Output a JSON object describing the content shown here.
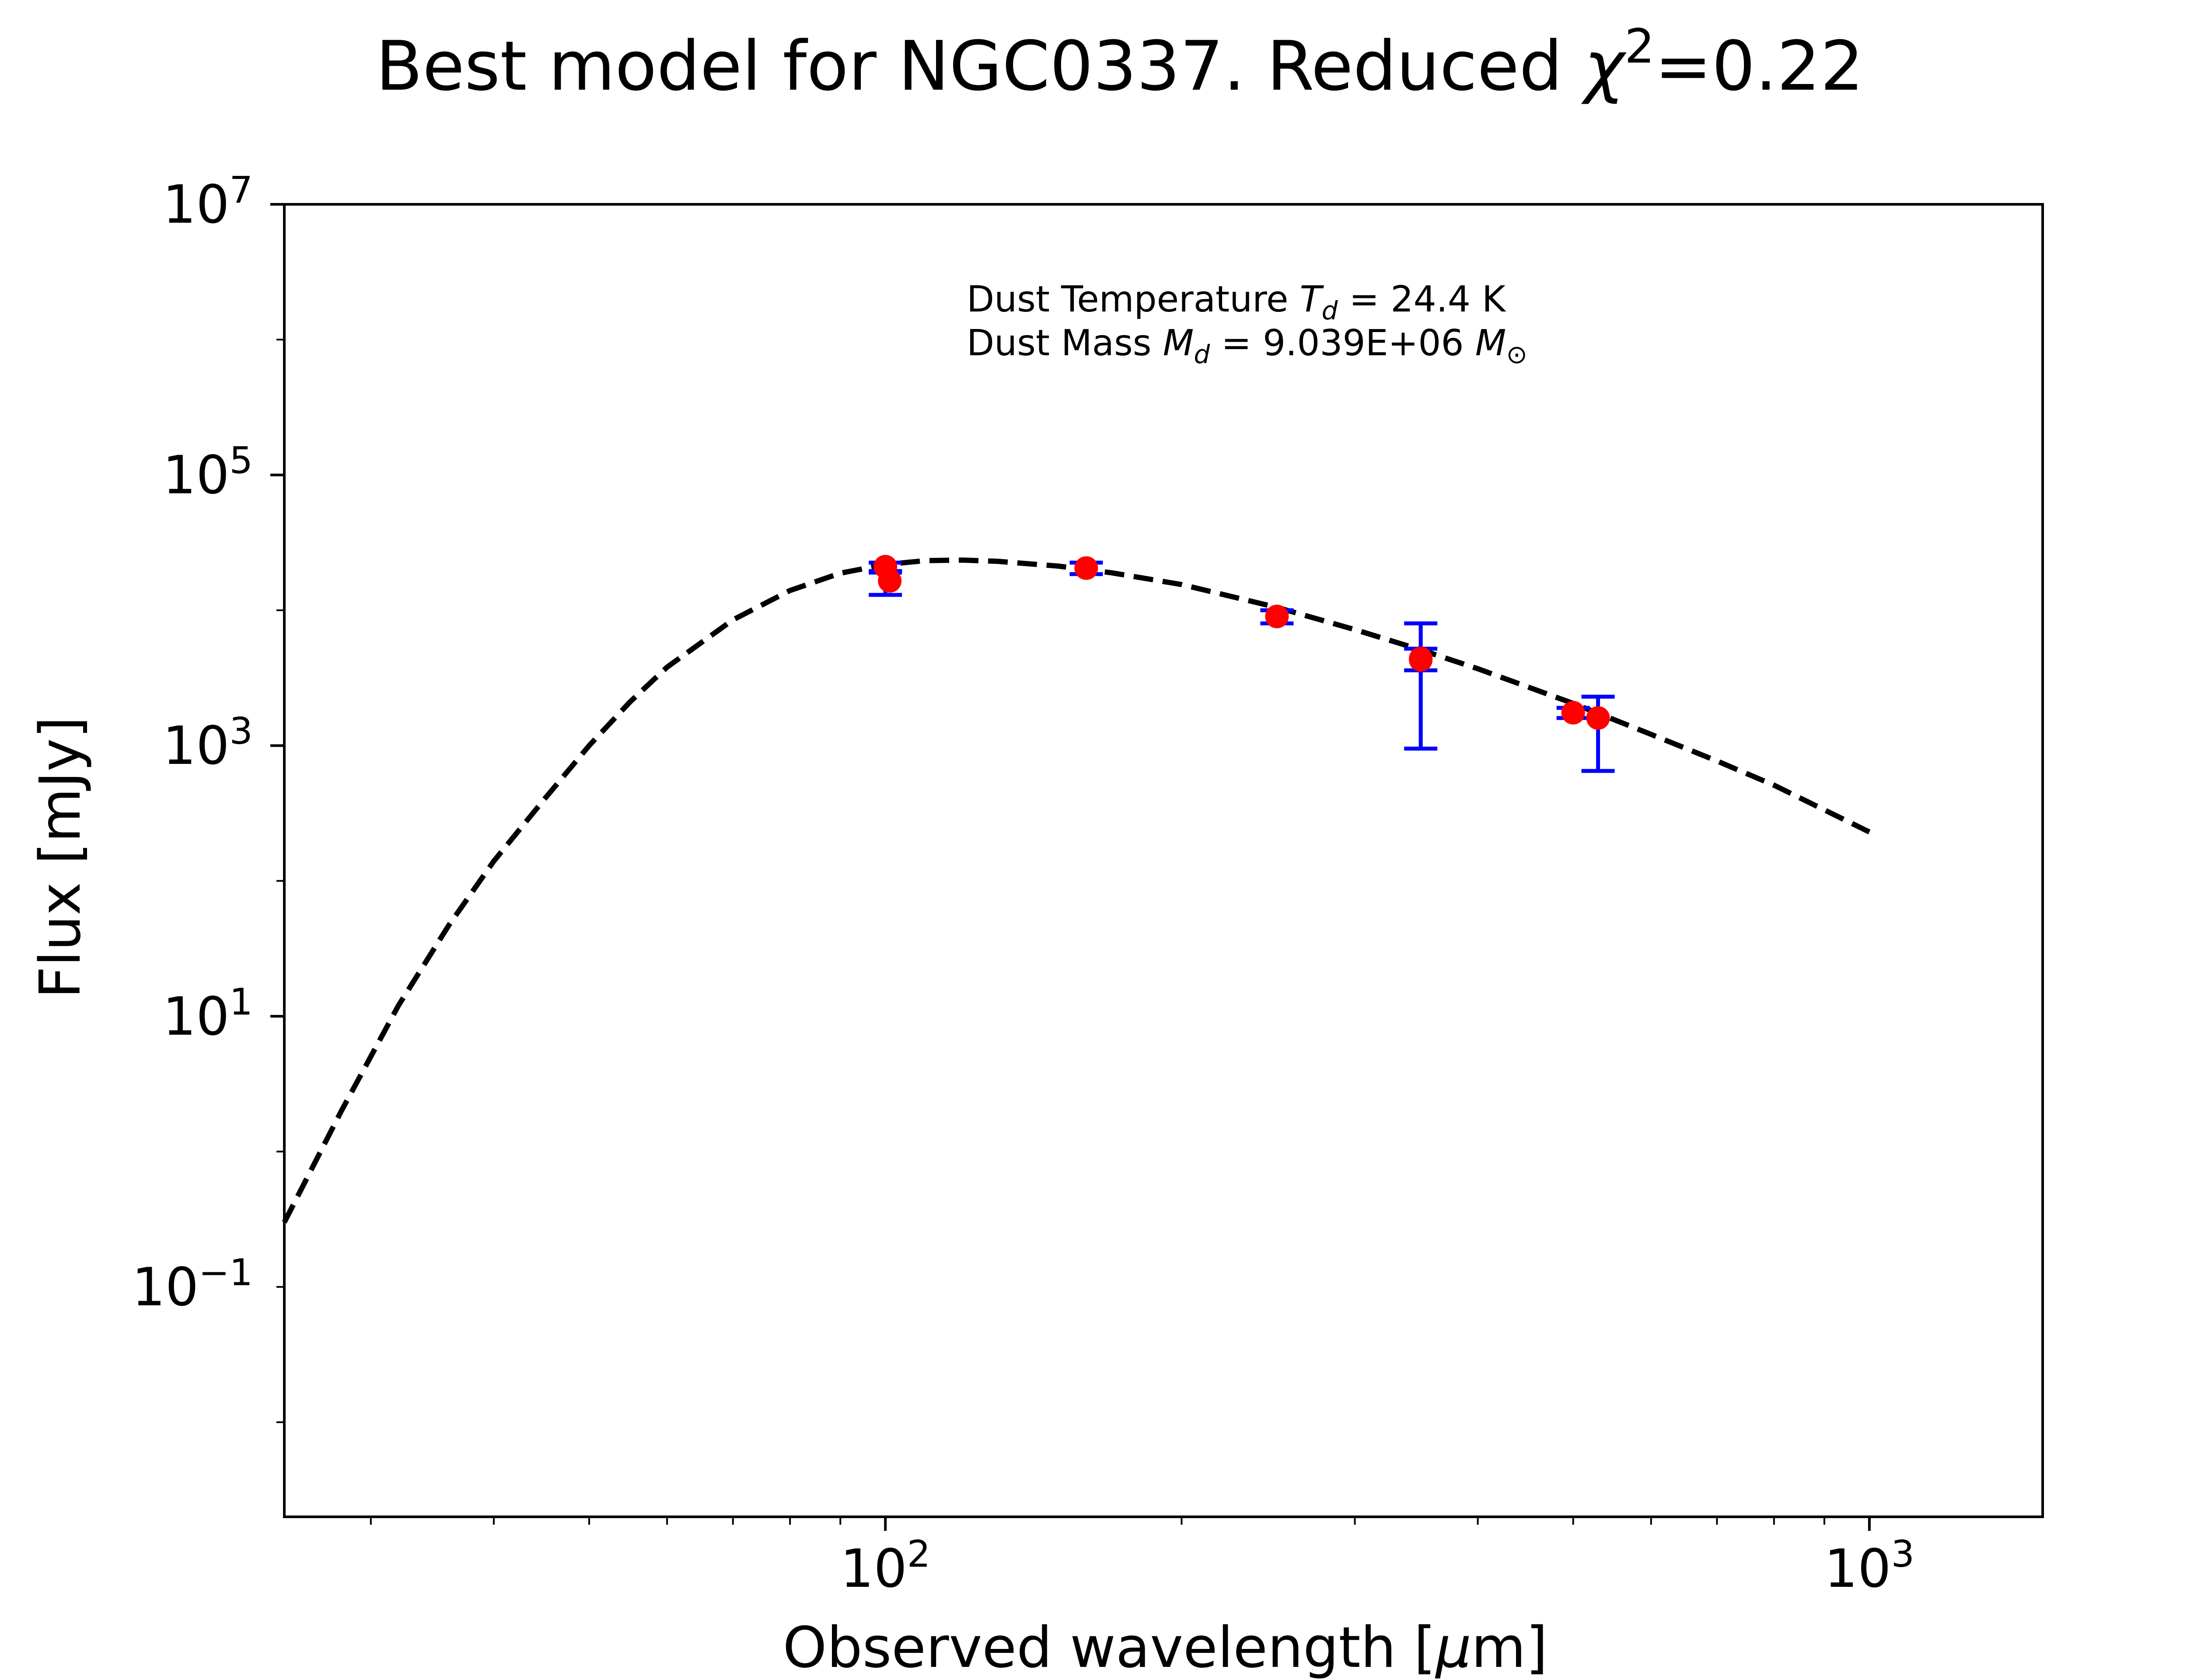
{
  "chart_data": {
    "type": "scatter",
    "title": {
      "main": "Best model for NGC0337. Reduced ",
      "symbol": "χ",
      "exponent": "2",
      "tail": "=0.22"
    },
    "xlabel": {
      "main": "Observed wavelength [",
      "symbol": "μ",
      "tail": "m]"
    },
    "ylabel": "Flux [mJy]",
    "xscale": "log",
    "yscale": "log",
    "xlim": [
      24.5,
      1500
    ],
    "ylim": [
      0.002,
      10000000
    ],
    "x_ticks": [
      {
        "value": 100,
        "base": "10",
        "exp": "2"
      },
      {
        "value": 1000,
        "base": "10",
        "exp": "3"
      }
    ],
    "y_ticks": [
      {
        "value": 0.1,
        "base": "10",
        "exp": "−1"
      },
      {
        "value": 10,
        "base": "10",
        "exp": "1"
      },
      {
        "value": 1000,
        "base": "10",
        "exp": "3"
      },
      {
        "value": 100000,
        "base": "10",
        "exp": "5"
      },
      {
        "value": 10000000,
        "base": "10",
        "exp": "7"
      }
    ],
    "grid": false,
    "annotation": {
      "line1_prefix": "Dust Temperature ",
      "line1_symbol": "T",
      "line1_sub": "d",
      "line1_value": " = 24.4 K",
      "line2_prefix": "Dust Mass ",
      "line2_symbol": "M",
      "line2_sub": "d",
      "line2_value": " = 9.039E+06 ",
      "line2_unit_symbol": "M",
      "line2_unit_sub": "⊙"
    },
    "model_curve": {
      "style": "dashed",
      "color": "#000000",
      "x": [
        24.5,
        28,
        32,
        36,
        40,
        45,
        50,
        55,
        60,
        70,
        80,
        90,
        100,
        110,
        120,
        130,
        150,
        170,
        200,
        250,
        300,
        350,
        400,
        500,
        600,
        700,
        800,
        1000
      ],
      "y": [
        0.3,
        2.0,
        12,
        47,
        140,
        400,
        1000,
        2100,
        3800,
        8500,
        14000,
        18800,
        21800,
        23300,
        23500,
        23000,
        21200,
        18900,
        15500,
        10500,
        7200,
        5100,
        3700,
        2050,
        1210,
        770,
        510,
        230
      ]
    },
    "observations": {
      "marker_color": "#ff0000",
      "error_color": "#0000ff",
      "x": [
        100,
        100,
        160,
        250,
        350,
        350,
        500,
        530
      ],
      "y": [
        21000,
        16500,
        20500,
        9000,
        4300,
        4400,
        1750,
        1600
      ],
      "yerr_low": [
        19000,
        13000,
        18500,
        8000,
        950,
        3600,
        1600,
        650
      ],
      "yerr_high": [
        22500,
        19500,
        22500,
        10000,
        8000,
        5200,
        1900,
        2300
      ]
    }
  }
}
